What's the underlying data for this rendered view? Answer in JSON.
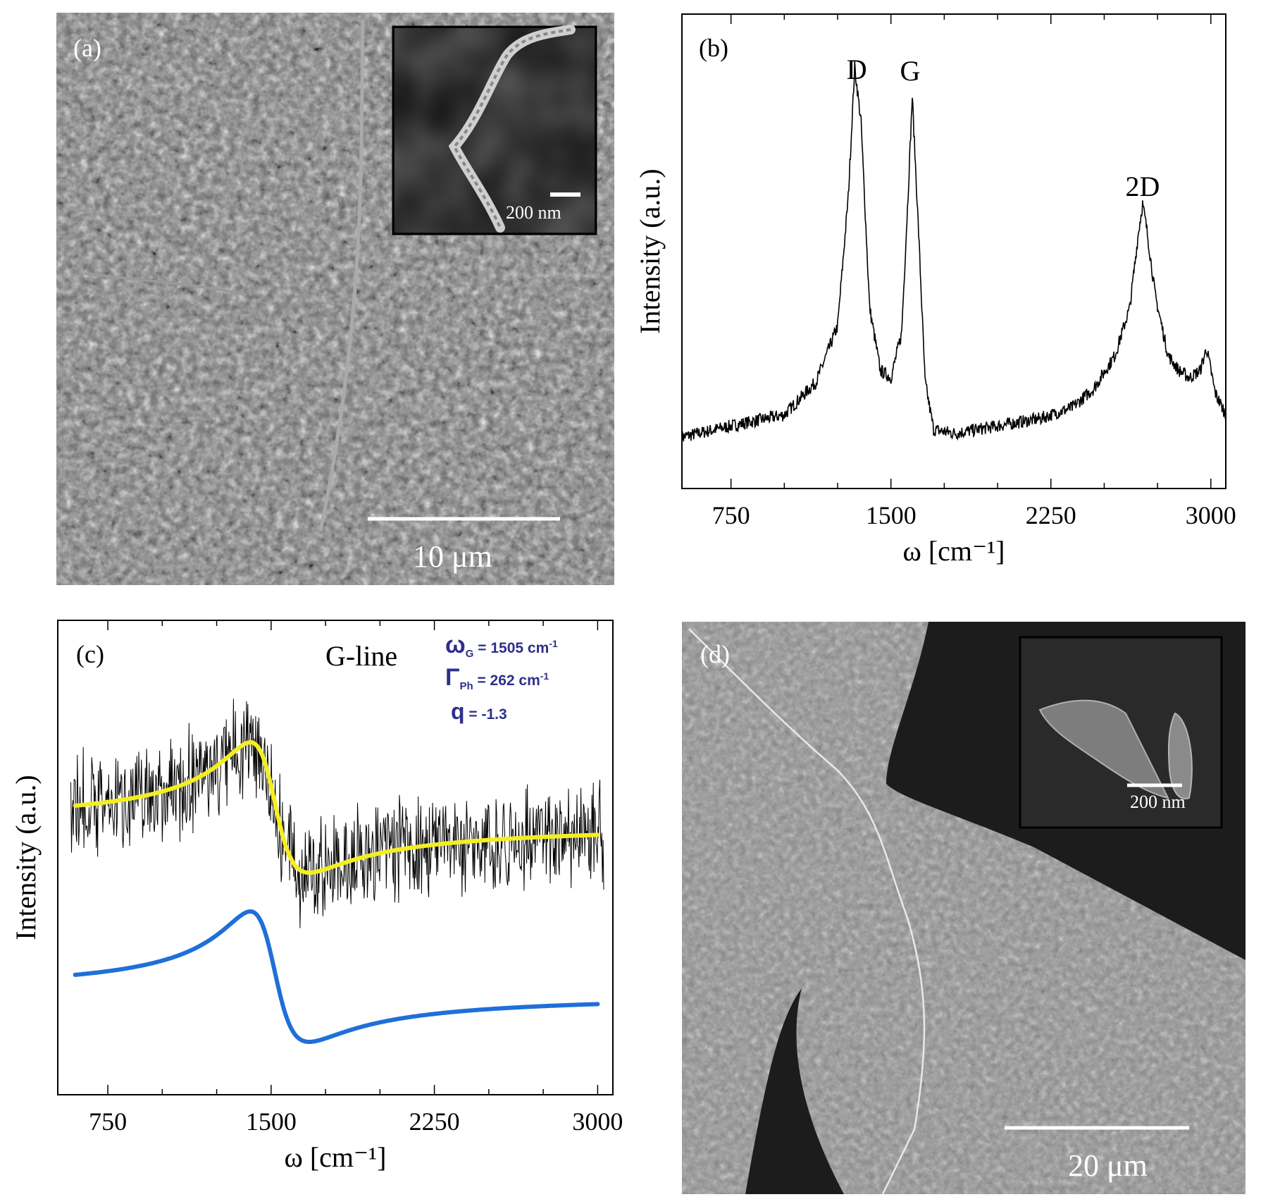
{
  "panels": {
    "a": {
      "label": "(a)",
      "scale_bar": "10 μm",
      "inset_scale_bar": "200 nm"
    },
    "d": {
      "label": "(d)",
      "scale_bar": "20 μm",
      "inset_scale_bar": "200 nm"
    }
  },
  "chart_data": [
    {
      "panel": "b",
      "type": "line",
      "label": "(b)",
      "xlabel": "ω [cm⁻¹]",
      "ylabel": "Intensity (a.u.)",
      "xlim": [
        520,
        3070
      ],
      "xticks": [
        750,
        1500,
        2250,
        3000
      ],
      "yticks": [],
      "annotations": [
        {
          "text": "D",
          "x": 1340
        },
        {
          "text": "G",
          "x": 1590
        },
        {
          "text": "2D",
          "x": 2680
        }
      ],
      "series": [
        {
          "color": "#000000",
          "x": [
            520,
            750,
            1000,
            1150,
            1250,
            1300,
            1330,
            1360,
            1400,
            1450,
            1500,
            1550,
            1580,
            1600,
            1630,
            1660,
            1700,
            1800,
            2000,
            2200,
            2350,
            2450,
            2550,
            2620,
            2660,
            2680,
            2700,
            2740,
            2800,
            2850,
            2900,
            2950,
            2980,
            3020,
            3070
          ],
          "y": [
            0.0,
            0.03,
            0.06,
            0.15,
            0.3,
            0.65,
            1.0,
            0.85,
            0.35,
            0.18,
            0.16,
            0.28,
            0.65,
            0.92,
            0.55,
            0.15,
            0.02,
            0.01,
            0.03,
            0.05,
            0.08,
            0.13,
            0.22,
            0.35,
            0.55,
            0.63,
            0.56,
            0.38,
            0.22,
            0.18,
            0.16,
            0.18,
            0.24,
            0.12,
            0.06
          ]
        }
      ]
    },
    {
      "panel": "c",
      "type": "line",
      "label": "(c)",
      "xlabel": "ω [cm⁻¹]",
      "ylabel": "Intensity (a.u.)",
      "xlim": [
        520,
        3070
      ],
      "xticks": [
        750,
        1500,
        2250,
        3000
      ],
      "yticks": [],
      "annotations": [
        {
          "text": "G-line"
        }
      ],
      "parameters": [
        {
          "symbol": "ω",
          "sub": "G",
          "value": " = 1505 cm",
          "sup": "-1"
        },
        {
          "symbol": "Γ",
          "sub": "Ph",
          "value": " = 262 cm",
          "sup": "-1"
        },
        {
          "symbol": "q",
          "sub": "",
          "value": "  = -1.3",
          "sup": ""
        }
      ],
      "fano": {
        "omega_G": 1505,
        "gamma": 262,
        "q": -1.3
      },
      "series": [
        {
          "role": "noisy data",
          "color": "#000000",
          "offset": 0.62
        },
        {
          "role": "fit",
          "color": "#f4ee22",
          "offset": 0.62
        },
        {
          "role": "fano curve",
          "color": "#1f6fd8",
          "offset": 0.0
        }
      ]
    }
  ]
}
